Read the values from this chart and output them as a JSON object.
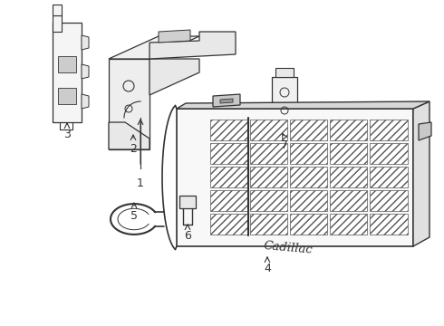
{
  "background_color": "#ffffff",
  "line_color": "#333333",
  "line_width": 1.0,
  "fig_width": 4.9,
  "fig_height": 3.6,
  "dpi": 100,
  "label_fontsize": 9,
  "grill": {
    "num_cols": 5,
    "num_rows": 5
  }
}
